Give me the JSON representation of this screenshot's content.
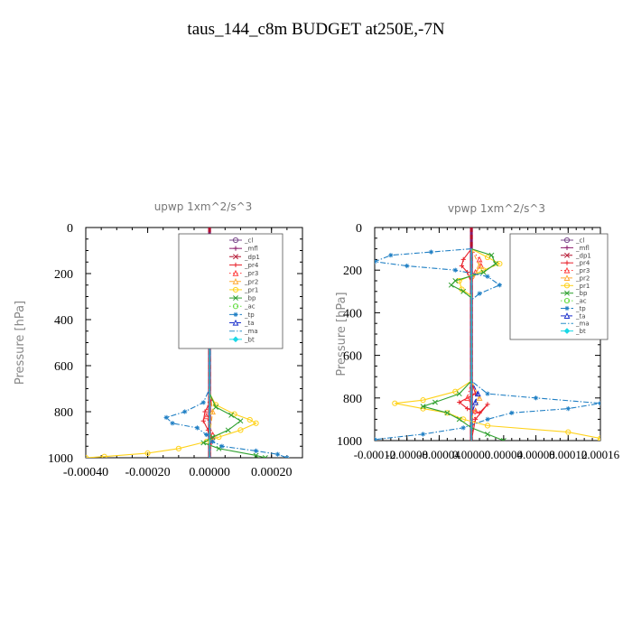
{
  "page": {
    "title": "taus_144_c8m  BUDGET at250E,-7N"
  },
  "chart_data": [
    {
      "type": "line",
      "title": "upwp   1xm^2/s^3",
      "xlabel": "",
      "ylabel": "Pressure [hPa]",
      "xlim": [
        -0.0004,
        0.0003
      ],
      "ylim": [
        1000,
        0
      ],
      "xticks": [
        "-0.00040",
        "-0.00020",
        "0.00000",
        "0.00020"
      ],
      "xtick_values": [
        -0.0004,
        -0.0002,
        0.0,
        0.0002
      ],
      "yticks": [
        "0",
        "200",
        "400",
        "600",
        "800",
        "1000"
      ],
      "ytick_values": [
        0,
        200,
        400,
        600,
        800,
        1000
      ],
      "legend_position": "top-right",
      "series": [
        {
          "name": "_cl",
          "color": "#7b4b8c",
          "marker": "circle",
          "style": "solid",
          "points": [
            [
              0,
              0
            ],
            [
              0,
              1000
            ]
          ]
        },
        {
          "name": "_mfl",
          "color": "#8b1a6b",
          "marker": "plus",
          "style": "solid",
          "points": [
            [
              0,
              0
            ],
            [
              0,
              1000
            ]
          ]
        },
        {
          "name": "_dp1",
          "color": "#b3122e",
          "marker": "x",
          "style": "dashed",
          "points": [
            [
              0,
              0
            ],
            [
              0,
              1000
            ]
          ]
        },
        {
          "name": "_pr4",
          "color": "#e8202a",
          "marker": "plus",
          "style": "solid",
          "points": [
            [
              0,
              90
            ],
            [
              5e-06,
              130
            ],
            [
              -1e-05,
              170
            ],
            [
              5e-06,
              220
            ],
            [
              0,
              300
            ],
            [
              0,
              700
            ],
            [
              5e-06,
              750
            ],
            [
              -1.5e-05,
              800
            ],
            [
              -2e-05,
              840
            ],
            [
              -5e-06,
              880
            ],
            [
              1e-05,
              920
            ],
            [
              0,
              960
            ],
            [
              0,
              1000
            ]
          ]
        },
        {
          "name": "_pr3",
          "color": "#ff3d3d",
          "marker": "triangle",
          "style": "dotted",
          "points": [
            [
              0,
              100
            ],
            [
              8e-06,
              150
            ],
            [
              0,
              200
            ],
            [
              0,
              700
            ],
            [
              -1e-05,
              820
            ],
            [
              1e-05,
              900
            ],
            [
              0,
              1000
            ]
          ]
        },
        {
          "name": "_pr2",
          "color": "#ffaa33",
          "marker": "triangle",
          "style": "dashed",
          "points": [
            [
              0,
              100
            ],
            [
              0,
              700
            ],
            [
              1e-05,
              800
            ],
            [
              0,
              900
            ],
            [
              0,
              1000
            ]
          ]
        },
        {
          "name": "_pr1",
          "color": "#ffd21a",
          "marker": "circle",
          "style": "solid",
          "points": [
            [
              0,
              100
            ],
            [
              -2.5e-05,
              130
            ],
            [
              1e-05,
              170
            ],
            [
              2e-05,
              220
            ],
            [
              5e-06,
              280
            ],
            [
              0,
              350
            ],
            [
              0,
              720
            ],
            [
              2e-05,
              770
            ],
            [
              8e-05,
              810
            ],
            [
              0.00013,
              835
            ],
            [
              0.00015,
              850
            ],
            [
              0.0001,
              880
            ],
            [
              3e-05,
              910
            ],
            [
              -1e-05,
              930
            ],
            [
              -0.0001,
              960
            ],
            [
              -0.0002,
              980
            ],
            [
              -0.00034,
              995
            ],
            [
              -0.0004,
              1000
            ]
          ]
        },
        {
          "name": "_bp",
          "color": "#2ea02e",
          "marker": "x",
          "style": "solid",
          "points": [
            [
              0,
              100
            ],
            [
              -2e-05,
              130
            ],
            [
              -4e-05,
              170
            ],
            [
              0,
              190
            ],
            [
              -1e-05,
              230
            ],
            [
              0,
              280
            ],
            [
              0,
              720
            ],
            [
              2e-05,
              780
            ],
            [
              7e-05,
              815
            ],
            [
              0.0001,
              840
            ],
            [
              6e-05,
              880
            ],
            [
              1e-05,
              910
            ],
            [
              -2e-05,
              935
            ],
            [
              3e-05,
              960
            ],
            [
              0.00015,
              990
            ],
            [
              0.00018,
              1000
            ]
          ]
        },
        {
          "name": "_ac",
          "color": "#66dd44",
          "marker": "circle",
          "style": "dotted",
          "points": [
            [
              0,
              100
            ],
            [
              0,
              1000
            ]
          ]
        },
        {
          "name": "_tp",
          "color": "#1f7fc4",
          "marker": "star",
          "style": "dashdot",
          "points": [
            [
              0,
              90
            ],
            [
              5e-06,
              140
            ],
            [
              1e-05,
              190
            ],
            [
              1.5e-05,
              240
            ],
            [
              2e-05,
              280
            ],
            [
              5e-06,
              320
            ],
            [
              0,
              700
            ],
            [
              -2e-05,
              760
            ],
            [
              -8e-05,
              800
            ],
            [
              -0.00014,
              825
            ],
            [
              -0.00012,
              850
            ],
            [
              -4e-05,
              870
            ],
            [
              -1e-05,
              900
            ],
            [
              1e-05,
              930
            ],
            [
              4e-05,
              950
            ],
            [
              0.00015,
              970
            ],
            [
              0.00022,
              985
            ],
            [
              0.00025,
              1000
            ]
          ]
        },
        {
          "name": "_ta",
          "color": "#1a2fcc",
          "marker": "triangle",
          "style": "dashed",
          "points": [
            [
              0,
              100
            ],
            [
              0,
              1000
            ]
          ]
        },
        {
          "name": "_ma",
          "color": "#2b8fc7",
          "marker": "none",
          "style": "dashdot",
          "points": [
            [
              0,
              100
            ],
            [
              0,
              1000
            ]
          ]
        },
        {
          "name": "_bt",
          "color": "#19d8e6",
          "marker": "diamond",
          "style": "solid",
          "points": [
            [
              0,
              100
            ],
            [
              0,
              1000
            ]
          ]
        }
      ]
    },
    {
      "type": "line",
      "title": "vpwp   1xm^2/s^3",
      "xlabel": "",
      "ylabel": "Pressure [hPa]",
      "xlim": [
        -0.00012,
        0.00016
      ],
      "ylim": [
        1000,
        0
      ],
      "xticks": [
        "-0.00012",
        "-0.00008",
        "-0.00004",
        "0.00000",
        "0.00004",
        "0.00008",
        "0.00012",
        "0.00016"
      ],
      "xtick_values": [
        -0.00012,
        -8e-05,
        -4e-05,
        0.0,
        4e-05,
        8e-05,
        0.00012,
        0.00016
      ],
      "yticks": [
        "0",
        "200",
        "400",
        "600",
        "800",
        "1000"
      ],
      "ytick_values": [
        0,
        200,
        400,
        600,
        800,
        1000
      ],
      "legend_position": "top-right",
      "series": [
        {
          "name": "_cl",
          "color": "#7b4b8c",
          "marker": "circle",
          "style": "solid",
          "points": [
            [
              0,
              0
            ],
            [
              0,
              1000
            ]
          ]
        },
        {
          "name": "_mfl",
          "color": "#8b1a6b",
          "marker": "plus",
          "style": "solid",
          "points": [
            [
              0,
              0
            ],
            [
              0,
              1000
            ]
          ]
        },
        {
          "name": "_dp1",
          "color": "#b3122e",
          "marker": "x",
          "style": "dashed",
          "points": [
            [
              0,
              0
            ],
            [
              0,
              1000
            ]
          ]
        },
        {
          "name": "_pr4",
          "color": "#e8202a",
          "marker": "plus",
          "style": "solid",
          "points": [
            [
              0,
              100
            ],
            [
              -1e-05,
              150
            ],
            [
              -1.2e-05,
              180
            ],
            [
              -5e-06,
              210
            ],
            [
              0,
              260
            ],
            [
              0,
              720
            ],
            [
              5e-06,
              780
            ],
            [
              -1.5e-05,
              820
            ],
            [
              -5e-06,
              850
            ],
            [
              1e-05,
              870
            ],
            [
              2e-05,
              830
            ],
            [
              5e-06,
              900
            ],
            [
              0,
              1000
            ]
          ]
        },
        {
          "name": "_pr3",
          "color": "#ff3d3d",
          "marker": "triangle",
          "style": "dotted",
          "points": [
            [
              0,
              100
            ],
            [
              1e-05,
              150
            ],
            [
              1.2e-05,
              180
            ],
            [
              5e-06,
              210
            ],
            [
              0,
              260
            ],
            [
              0,
              720
            ],
            [
              -5e-06,
              800
            ],
            [
              5e-06,
              860
            ],
            [
              0,
              1000
            ]
          ]
        },
        {
          "name": "_pr2",
          "color": "#ffaa33",
          "marker": "triangle",
          "style": "dashed",
          "points": [
            [
              0,
              100
            ],
            [
              1e-05,
              180
            ],
            [
              0,
              260
            ],
            [
              0,
              720
            ],
            [
              1e-05,
              800
            ],
            [
              0,
              900
            ],
            [
              0,
              1000
            ]
          ]
        },
        {
          "name": "_pr1",
          "color": "#ffd21a",
          "marker": "circle",
          "style": "solid",
          "points": [
            [
              0,
              100
            ],
            [
              2e-05,
              140
            ],
            [
              3.5e-05,
              170
            ],
            [
              1.5e-05,
              200
            ],
            [
              -1.5e-05,
              250
            ],
            [
              -1.2e-05,
              290
            ],
            [
              0,
              320
            ],
            [
              0,
              720
            ],
            [
              -2e-05,
              770
            ],
            [
              -6e-05,
              810
            ],
            [
              -9.5e-05,
              825
            ],
            [
              -6e-05,
              850
            ],
            [
              -3e-05,
              870
            ],
            [
              -1e-05,
              900
            ],
            [
              2e-05,
              930
            ],
            [
              0.00012,
              960
            ],
            [
              0.00016,
              990
            ],
            [
              0.00016,
              1000
            ]
          ]
        },
        {
          "name": "_bp",
          "color": "#2ea02e",
          "marker": "x",
          "style": "solid",
          "points": [
            [
              0,
              100
            ],
            [
              2.5e-05,
              130
            ],
            [
              3e-05,
              170
            ],
            [
              1.5e-05,
              210
            ],
            [
              -2e-05,
              250
            ],
            [
              -2.5e-05,
              270
            ],
            [
              -1e-05,
              300
            ],
            [
              0,
              330
            ],
            [
              0,
              720
            ],
            [
              -1.5e-05,
              780
            ],
            [
              -4.5e-05,
              820
            ],
            [
              -6e-05,
              840
            ],
            [
              -3e-05,
              870
            ],
            [
              -1.5e-05,
              900
            ],
            [
              0,
              940
            ],
            [
              2e-05,
              970
            ],
            [
              4e-05,
              1000
            ]
          ]
        },
        {
          "name": "_ac",
          "color": "#66dd44",
          "marker": "circle",
          "style": "dotted",
          "points": [
            [
              0,
              100
            ],
            [
              0,
              1000
            ]
          ]
        },
        {
          "name": "_tp",
          "color": "#1f7fc4",
          "marker": "star",
          "style": "dashdot",
          "points": [
            [
              0,
              100
            ],
            [
              -5e-05,
              115
            ],
            [
              -0.0001,
              130
            ],
            [
              -0.00012,
              160
            ],
            [
              -8e-05,
              180
            ],
            [
              -2e-05,
              200
            ],
            [
              2e-05,
              230
            ],
            [
              3.5e-05,
              270
            ],
            [
              1e-05,
              310
            ],
            [
              0,
              340
            ],
            [
              0,
              720
            ],
            [
              2e-05,
              780
            ],
            [
              8e-05,
              800
            ],
            [
              0.00016,
              825
            ],
            [
              0.00012,
              850
            ],
            [
              5e-05,
              870
            ],
            [
              2e-05,
              900
            ],
            [
              -1e-05,
              940
            ],
            [
              -6e-05,
              970
            ],
            [
              -0.00012,
              995
            ],
            [
              -0.00012,
              1000
            ]
          ]
        },
        {
          "name": "_ta",
          "color": "#1a2fcc",
          "marker": "triangle",
          "style": "dashed",
          "points": [
            [
              0,
              100
            ],
            [
              0,
              720
            ],
            [
              8e-06,
              780
            ],
            [
              5e-06,
              820
            ],
            [
              0,
              880
            ],
            [
              0,
              1000
            ]
          ]
        },
        {
          "name": "_ma",
          "color": "#2b8fc7",
          "marker": "none",
          "style": "dashdot",
          "points": [
            [
              0,
              100
            ],
            [
              0,
              1000
            ]
          ]
        },
        {
          "name": "_bt",
          "color": "#19d8e6",
          "marker": "diamond",
          "style": "solid",
          "points": [
            [
              0,
              100
            ],
            [
              0,
              1000
            ]
          ]
        }
      ]
    }
  ]
}
